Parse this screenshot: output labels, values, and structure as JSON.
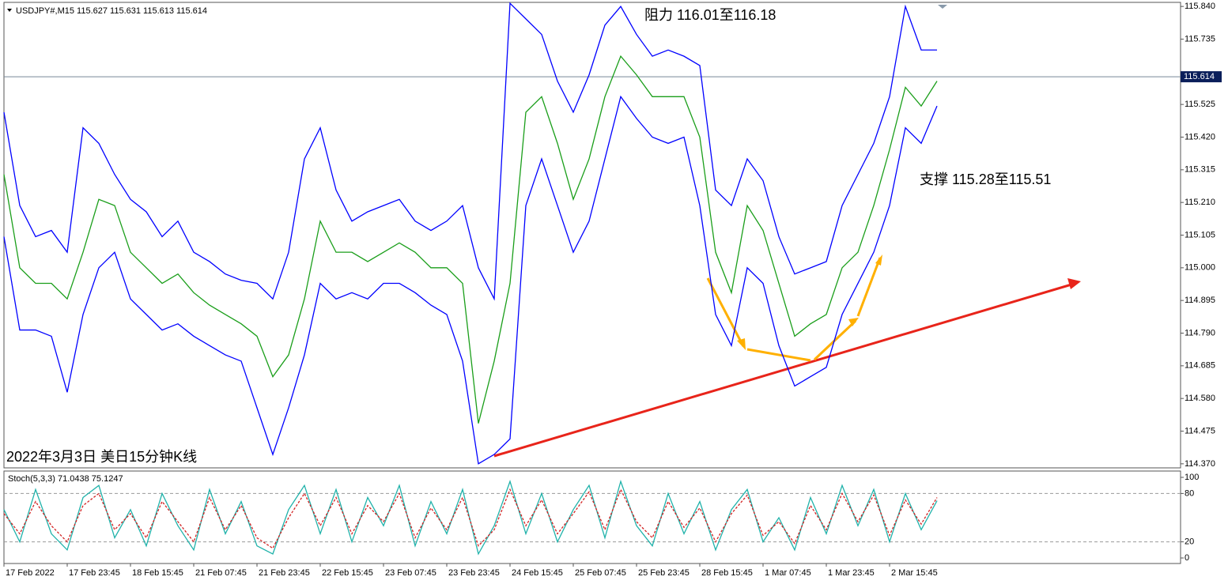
{
  "chart_data": [
    {
      "type": "line",
      "title": "USDJPY#,M15  115.627 115.631 115.613 115.614",
      "annotations": [
        "阻力 116.01至116.18",
        "支撑 115.28至115.51",
        "2022年3月3日 美日15分钟K线"
      ],
      "current_price": {
        "value": 115.614,
        "label": "115.614"
      },
      "series": [
        {
          "color": "#1a9e1a",
          "values": [
            115.3,
            115.0,
            114.95,
            114.95,
            114.9,
            115.05,
            115.22,
            115.2,
            115.05,
            115.0,
            114.95,
            114.98,
            114.92,
            114.88,
            114.85,
            114.82,
            114.78,
            114.65,
            114.72,
            114.9,
            115.15,
            115.05,
            115.05,
            115.02,
            115.05,
            115.08,
            115.05,
            115.0,
            115.0,
            114.95,
            114.5,
            114.7,
            114.95,
            115.5,
            115.55,
            115.4,
            115.22,
            115.35,
            115.55,
            115.68,
            115.62,
            115.55,
            115.55,
            115.55,
            115.42,
            115.05,
            114.92,
            115.2,
            115.12,
            114.95,
            114.78,
            114.82,
            114.85,
            115.0,
            115.05,
            115.2,
            115.38,
            115.58,
            115.52,
            115.6
          ]
        },
        {
          "color": "#0000ff",
          "values": [
            115.5,
            115.2,
            115.1,
            115.12,
            115.05,
            115.45,
            115.4,
            115.3,
            115.22,
            115.18,
            115.1,
            115.15,
            115.05,
            115.02,
            114.98,
            114.96,
            114.95,
            114.9,
            115.05,
            115.35,
            115.45,
            115.25,
            115.15,
            115.18,
            115.2,
            115.22,
            115.15,
            115.12,
            115.15,
            115.2,
            115.0,
            114.9,
            115.85,
            115.8,
            115.75,
            115.6,
            115.5,
            115.62,
            115.78,
            115.84,
            115.75,
            115.68,
            115.7,
            115.68,
            115.65,
            115.25,
            115.2,
            115.35,
            115.28,
            115.1,
            114.98,
            115.0,
            115.02,
            115.2,
            115.3,
            115.4,
            115.55,
            115.84,
            115.7,
            115.7
          ]
        },
        {
          "color": "#0000ff",
          "values": [
            115.1,
            114.8,
            114.8,
            114.78,
            114.6,
            114.85,
            115.0,
            115.05,
            114.9,
            114.85,
            114.8,
            114.82,
            114.78,
            114.75,
            114.72,
            114.7,
            114.55,
            114.4,
            114.55,
            114.72,
            114.95,
            114.9,
            114.92,
            114.9,
            114.95,
            114.95,
            114.92,
            114.88,
            114.85,
            114.7,
            114.37,
            114.4,
            114.45,
            115.2,
            115.35,
            115.2,
            115.05,
            115.15,
            115.35,
            115.55,
            115.48,
            115.42,
            115.4,
            115.42,
            115.2,
            114.85,
            114.75,
            115.0,
            114.95,
            114.75,
            114.62,
            114.65,
            114.68,
            114.85,
            114.95,
            115.05,
            115.2,
            115.45,
            115.4,
            115.52
          ]
        }
      ],
      "ylim": [
        114.362,
        115.848
      ],
      "yticks": [
        {
          "value": 115.84,
          "label": "115.840"
        },
        115.735,
        115.525,
        {
          "value": 115.42,
          "label": "115.420"
        },
        115.315,
        {
          "value": 115.21,
          "label": "115.210"
        },
        115.105,
        {
          "value": 115,
          "label": "115.000"
        },
        114.895,
        {
          "value": 114.79,
          "label": "114.790"
        },
        114.685,
        {
          "value": 114.58,
          "label": "114.580"
        },
        114.475,
        {
          "value": 114.37,
          "label": "114.370"
        }
      ]
    },
    {
      "type": "line",
      "title": "Stoch(5,3,3) 71.0438 75.1247",
      "categories": [
        "17 Feb 2022",
        null,
        null,
        null,
        "17 Feb 23:45",
        null,
        null,
        null,
        "18 Feb 15:45",
        null,
        null,
        null,
        "21 Feb 07:45",
        null,
        null,
        null,
        "21 Feb 23:45",
        null,
        null,
        null,
        "22 Feb 15:45",
        null,
        null,
        null,
        "23 Feb 07:45",
        null,
        null,
        null,
        "23 Feb 23:45",
        null,
        null,
        null,
        "24 Feb 15:45",
        null,
        null,
        null,
        "25 Feb 07:45",
        null,
        null,
        null,
        "25 Feb 23:45",
        null,
        null,
        null,
        "28 Feb 15:45",
        null,
        null,
        null,
        "1 Mar 07:45",
        null,
        null,
        null,
        "1 Mar 23:45",
        null,
        null,
        null,
        "2 Mar 15:45",
        null,
        null,
        null
      ],
      "series": [
        {
          "color": "#20b2aa",
          "line_style": "solid",
          "values": [
            60,
            20,
            85,
            30,
            10,
            75,
            90,
            25,
            60,
            15,
            80,
            40,
            10,
            85,
            30,
            70,
            15,
            5,
            60,
            90,
            30,
            85,
            20,
            75,
            40,
            90,
            15,
            70,
            30,
            85,
            5,
            40,
            95,
            30,
            80,
            20,
            60,
            90,
            25,
            95,
            40,
            15,
            80,
            30,
            70,
            10,
            60,
            85,
            20,
            50,
            10,
            75,
            30,
            90,
            40,
            85,
            20,
            80,
            35,
            71
          ]
        },
        {
          "color": "#d22222",
          "line_style": "dashed",
          "values": [
            55,
            30,
            70,
            40,
            20,
            65,
            80,
            35,
            55,
            25,
            70,
            45,
            20,
            75,
            35,
            65,
            25,
            12,
            50,
            80,
            40,
            75,
            30,
            65,
            45,
            80,
            25,
            62,
            35,
            75,
            15,
            35,
            85,
            40,
            72,
            30,
            55,
            82,
            35,
            85,
            45,
            25,
            70,
            38,
            62,
            20,
            55,
            78,
            28,
            45,
            18,
            65,
            35,
            80,
            45,
            78,
            28,
            72,
            42,
            75
          ]
        }
      ],
      "ylim": [
        0,
        100
      ],
      "yticks": [
        0,
        20,
        80,
        100
      ],
      "level_lines": [
        20,
        80
      ]
    }
  ]
}
